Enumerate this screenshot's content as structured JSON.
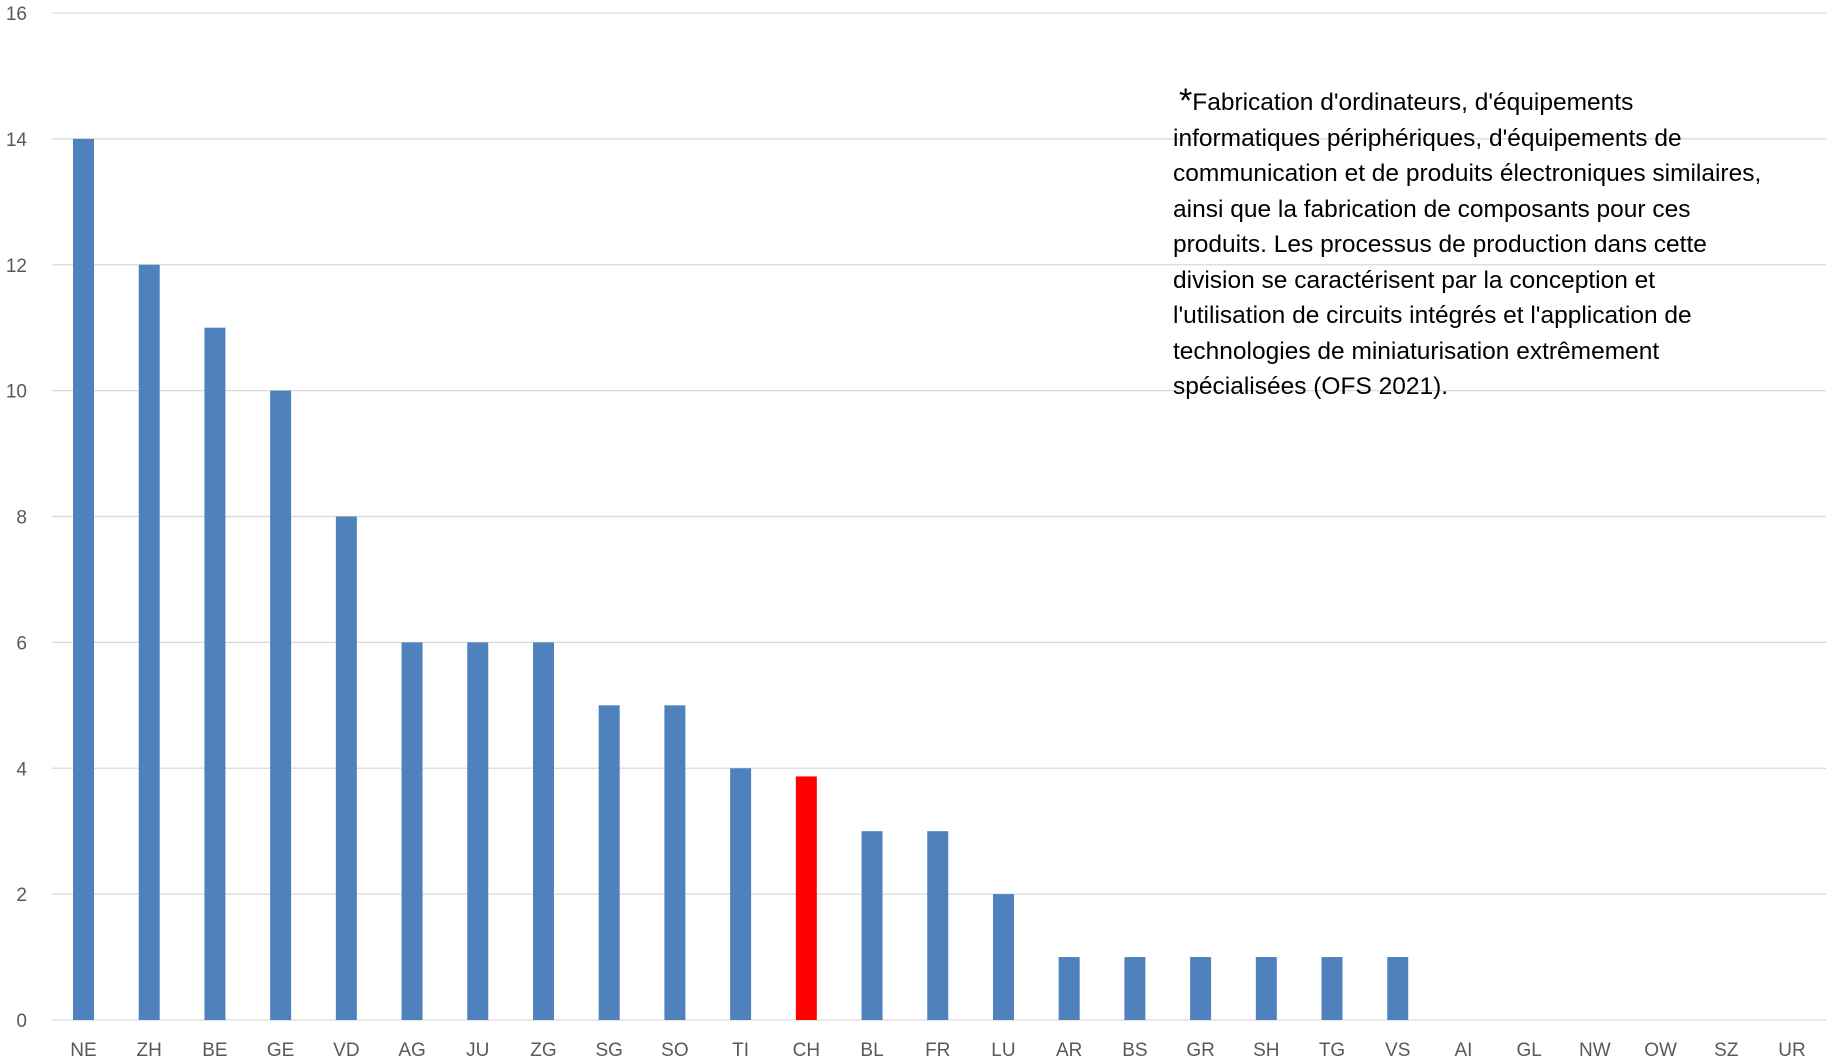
{
  "chart_data": {
    "type": "bar",
    "title": "",
    "xlabel": "",
    "ylabel": "",
    "ylim": [
      0,
      16
    ],
    "yticks": [
      0,
      2,
      4,
      6,
      8,
      10,
      12,
      14,
      16
    ],
    "grid": true,
    "legend": "none",
    "categories": [
      "NE",
      "ZH",
      "BE",
      "GE",
      "VD",
      "AG",
      "JU",
      "ZG",
      "SG",
      "SO",
      "TI",
      "CH",
      "BL",
      "FR",
      "LU",
      "AR",
      "BS",
      "GR",
      "SH",
      "TG",
      "VS",
      "AI",
      "GL",
      "NW",
      "OW",
      "SZ",
      "UR"
    ],
    "values": [
      14,
      12,
      11,
      10,
      8,
      6,
      6,
      6,
      5,
      5,
      4,
      3.87,
      3,
      3,
      2,
      1,
      1,
      1,
      1,
      1,
      1,
      0,
      0,
      0,
      0,
      0,
      0
    ],
    "highlight_category": "CH",
    "colors": {
      "bar": "#4f81bd",
      "highlight": "#ff0000",
      "grid": "#d9d9d9",
      "tick_text": "#595959"
    },
    "annotation": {
      "marker": "*",
      "lines": [
        "Fabrication d'ordinateurs, d'équipements",
        "informatiques périphériques, d'équipements de",
        "communication et de produits électroniques similaires,",
        "ainsi que la fabrication de composants pour ces",
        "produits. Les processus de production dans cette",
        "division se caractérisent par la conception et",
        "l'utilisation de circuits intégrés et l'application de",
        "technologies de miniaturisation extrêmement",
        "spécialisées (OFS 2021)."
      ]
    }
  }
}
